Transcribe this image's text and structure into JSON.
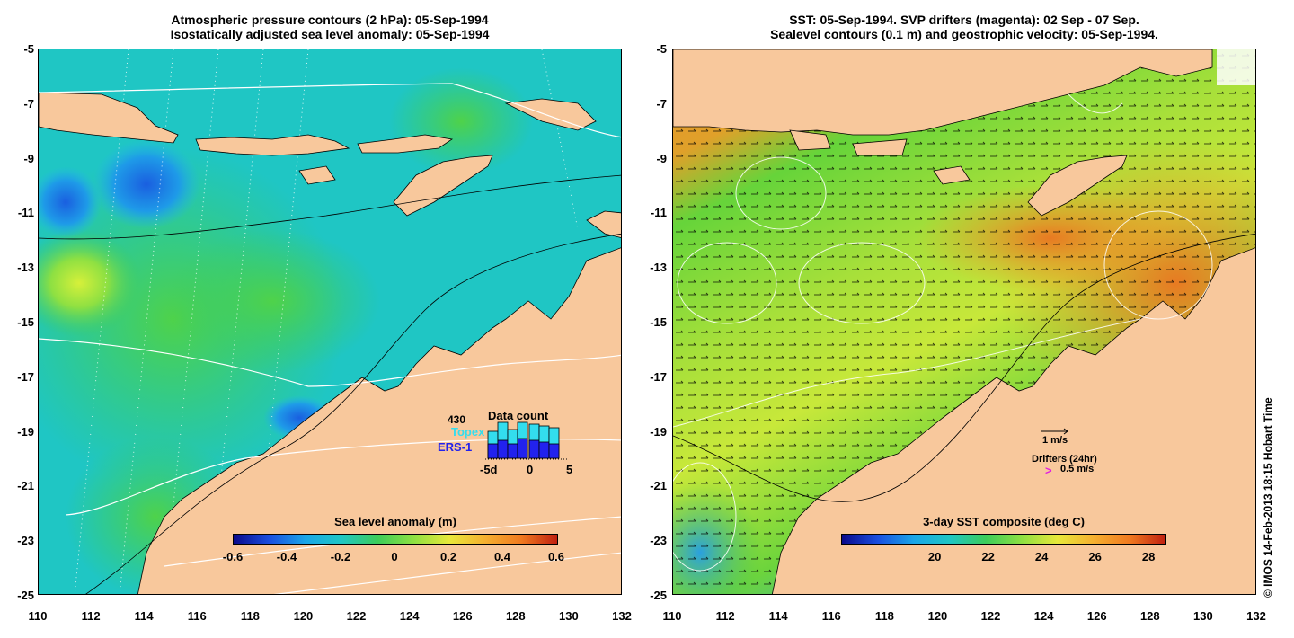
{
  "left": {
    "title_line1": "Atmospheric pressure contours (2 hPa): 05-Sep-1994",
    "title_line2": "Isostatically adjusted sea level anomaly: 05-Sep-1994",
    "colorbar_title": "Sea level anomaly (m)",
    "colorbar_ticks": [
      "-0.6",
      "-0.4",
      "-0.2",
      "0",
      "0.2",
      "0.4",
      "0.6"
    ],
    "data_count": {
      "total": "430",
      "title": "Data count",
      "topex_label": "Topex",
      "ers_label": "ERS-1",
      "axis_ticks": [
        "-5d",
        "0",
        "5"
      ],
      "topex_color": "#33ddee",
      "ers_color": "#2222ee"
    }
  },
  "right": {
    "title_line1": "SST: 05-Sep-1994. SVP drifters (magenta): 02 Sep - 07 Sep.",
    "title_line2": "Sealevel contours (0.1 m) and geostrophic velocity: 05-Sep-1994.",
    "colorbar_title": "3-day SST composite (deg C)",
    "colorbar_ticks": [
      "20",
      "22",
      "24",
      "26",
      "28"
    ],
    "velocity_scale": "1 m/s",
    "drifters_label": "Drifters (24hr)",
    "drifters_marker": ">",
    "drifters_speed": "0.5 m/s"
  },
  "axes": {
    "y_ticks": [
      "-5",
      "-7",
      "-9",
      "-11",
      "-13",
      "-15",
      "-17",
      "-19",
      "-21",
      "-23",
      "-25"
    ],
    "x_ticks": [
      "110",
      "112",
      "114",
      "116",
      "118",
      "120",
      "122",
      "124",
      "126",
      "128",
      "130",
      "132"
    ]
  },
  "credit": "© IMOS 14-Feb-2013 18:15 Hobart Time",
  "colors": {
    "land": "#f8c89c",
    "ocean_sla_base": "#19c8c8",
    "sst_warm": "#e88a2a",
    "sst_cool": "#56d43c"
  }
}
